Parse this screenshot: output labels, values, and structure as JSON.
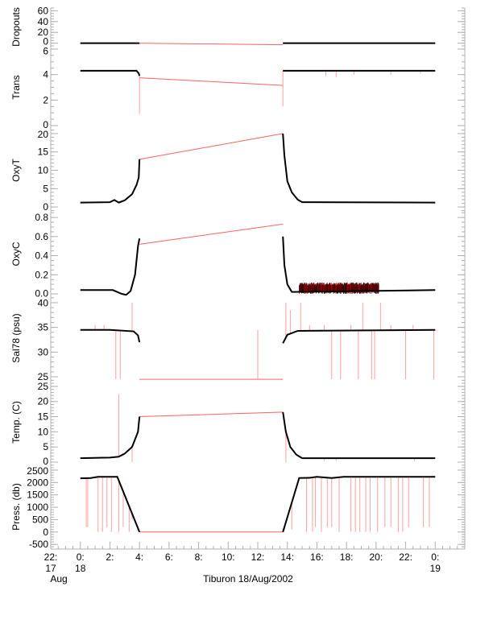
{
  "chart_data": [
    {
      "type": "line",
      "ylabel": "Dropouts",
      "ylim": [
        -5,
        65
      ],
      "ticks": [
        0,
        20,
        40,
        60
      ],
      "minor": 5,
      "good": [
        [
          [
            0,
            0
          ],
          [
            4.0,
            0
          ]
        ],
        [
          [
            13.7,
            0
          ],
          [
            24,
            0
          ]
        ]
      ],
      "interp": [
        [
          4.0,
          0
        ],
        [
          13.7,
          -3
        ]
      ],
      "spikes": []
    },
    {
      "type": "line",
      "ylabel": "Trans",
      "ylim": [
        -0.25,
        6.25
      ],
      "ticks": [
        0,
        2,
        4,
        6
      ],
      "minor": 0.5,
      "good": [
        [
          [
            0,
            4.3
          ],
          [
            3.8,
            4.3
          ],
          [
            3.95,
            4.1
          ],
          [
            4.0,
            3.9
          ]
        ],
        [
          [
            13.7,
            4.3
          ],
          [
            24,
            4.3
          ]
        ]
      ],
      "interp": [
        [
          4.0,
          3.75
        ],
        [
          13.7,
          3.15
        ]
      ],
      "spikes": [
        [
          4.0,
          0.9
        ],
        [
          13.7,
          1.5
        ],
        [
          16.6,
          3.9
        ],
        [
          17.3,
          3.8
        ],
        [
          18.5,
          4.0
        ],
        [
          21.0,
          4.0
        ],
        [
          23.0,
          4.1
        ]
      ]
    },
    {
      "type": "line",
      "ylabel": "OxyT",
      "ylim": [
        -1.3,
        21.3
      ],
      "ticks": [
        0,
        5,
        10,
        15,
        20
      ],
      "minor": 1,
      "good": [
        [
          [
            0,
            1.2
          ],
          [
            2.0,
            1.3
          ],
          [
            2.3,
            1.9
          ],
          [
            2.6,
            1.2
          ],
          [
            3.0,
            1.8
          ],
          [
            3.5,
            3.5
          ],
          [
            3.8,
            6
          ],
          [
            3.95,
            8
          ],
          [
            4.0,
            13
          ]
        ],
        [
          [
            13.7,
            20
          ],
          [
            13.8,
            14
          ],
          [
            14.0,
            7
          ],
          [
            14.3,
            4
          ],
          [
            14.7,
            2
          ],
          [
            15.0,
            1.3
          ],
          [
            24,
            1.2
          ]
        ]
      ],
      "interp": [
        [
          4.0,
          13
        ],
        [
          13.7,
          20
        ]
      ],
      "spikes": []
    },
    {
      "type": "line",
      "ylabel": "OxyC",
      "ylim": [
        -0.025,
        0.86
      ],
      "ticks": [
        0.0,
        0.2,
        0.4,
        0.6,
        0.8
      ],
      "tick_labels": [
        "0.0",
        "0.2",
        "0.4",
        "0.6",
        "0.8"
      ],
      "minor": 0.05,
      "good": [
        [
          [
            0,
            0.04
          ],
          [
            2.2,
            0.04
          ],
          [
            2.8,
            0.0
          ],
          [
            3.1,
            -0.01
          ],
          [
            3.4,
            0.03
          ],
          [
            3.7,
            0.2
          ],
          [
            3.9,
            0.5
          ],
          [
            4.0,
            0.58
          ]
        ],
        [
          [
            13.7,
            0.6
          ],
          [
            13.8,
            0.3
          ],
          [
            14.0,
            0.1
          ],
          [
            14.3,
            0.02
          ],
          [
            24,
            0.04
          ]
        ]
      ],
      "interp": [
        [
          4.0,
          0.52
        ],
        [
          13.7,
          0.73
        ]
      ],
      "spikes": [],
      "noise": {
        "from": 14.8,
        "to": 20.2,
        "low": 0.0,
        "high": 0.12
      }
    },
    {
      "type": "line",
      "ylabel": "Sal78 (psu)",
      "ylim": [
        24.35,
        41.3
      ],
      "ticks": [
        25,
        30,
        35,
        40
      ],
      "minor": 1,
      "good": [
        [
          [
            0,
            34.5
          ],
          [
            2.0,
            34.5
          ],
          [
            3.6,
            34.2
          ],
          [
            3.9,
            33.4
          ],
          [
            4.0,
            32
          ]
        ],
        [
          [
            13.7,
            31.8
          ],
          [
            14.0,
            33.5
          ],
          [
            14.7,
            34.3
          ],
          [
            24,
            34.5
          ]
        ]
      ],
      "interp": [
        [
          4.0,
          24.5
        ],
        [
          13.7,
          24.5
        ]
      ],
      "spikes": [
        [
          2.4,
          24.5
        ],
        [
          2.7,
          24.5
        ],
        [
          3.5,
          40
        ],
        [
          13.9,
          40
        ],
        [
          14.2,
          38.5
        ],
        [
          14.9,
          40
        ],
        [
          17.0,
          24.5
        ],
        [
          17.6,
          24.5
        ],
        [
          18.8,
          24.5
        ],
        [
          19.1,
          40
        ],
        [
          19.7,
          24.5
        ],
        [
          19.9,
          24.5
        ],
        [
          20.3,
          40
        ],
        [
          22.0,
          24.5
        ],
        [
          23.9,
          24.5
        ],
        [
          1.0,
          35.5
        ],
        [
          1.6,
          35.5
        ],
        [
          12.0,
          34.5
        ],
        [
          15.5,
          35.5
        ],
        [
          16.5,
          35.5
        ],
        [
          18.3,
          35.5
        ],
        [
          21.0,
          35.5
        ],
        [
          22.5,
          35.5
        ]
      ]
    },
    {
      "type": "line",
      "ylabel": "Temp. (C)",
      "ylim": [
        -0.8,
        27.1
      ],
      "ticks": [
        0,
        5,
        10,
        15,
        20,
        25
      ],
      "minor": 1,
      "good": [
        [
          [
            0,
            1.3
          ],
          [
            2.0,
            1.5
          ],
          [
            2.6,
            1.8
          ],
          [
            3.0,
            2.8
          ],
          [
            3.5,
            5
          ],
          [
            3.9,
            10
          ],
          [
            4.0,
            15
          ]
        ],
        [
          [
            13.7,
            16.5
          ],
          [
            13.9,
            10
          ],
          [
            14.2,
            5
          ],
          [
            14.6,
            2.5
          ],
          [
            15.0,
            1.3
          ],
          [
            24,
            1.3
          ]
        ]
      ],
      "interp": [
        [
          4.0,
          15
        ],
        [
          13.7,
          16.5
        ]
      ],
      "spikes": [
        [
          2.6,
          22.5
        ],
        [
          3.5,
          0
        ],
        [
          13.9,
          0
        ],
        [
          16.5,
          0.5
        ],
        [
          17.3,
          0.5
        ],
        [
          22.6,
          0.5
        ]
      ]
    },
    {
      "type": "line",
      "ylabel": "Press. (db)",
      "ylim": [
        -690,
        2725
      ],
      "ticks": [
        -500,
        0,
        500,
        1000,
        1500,
        2000,
        2500
      ],
      "minor": 100,
      "good": [
        [
          [
            0,
            2170
          ],
          [
            0.7,
            2180
          ],
          [
            1.2,
            2230
          ],
          [
            2.5,
            2230
          ],
          [
            4.0,
            0
          ]
        ],
        [
          [
            13.7,
            0
          ],
          [
            14.8,
            2180
          ],
          [
            15.5,
            2190
          ],
          [
            16.0,
            2230
          ],
          [
            17.0,
            2180
          ],
          [
            17.8,
            2230
          ],
          [
            24,
            2230
          ]
        ]
      ],
      "interp": [
        [
          4.0,
          0
        ],
        [
          13.7,
          0
        ]
      ],
      "spikes": [
        [
          0.4,
          200
        ],
        [
          0.5,
          200
        ],
        [
          1.2,
          0
        ],
        [
          1.5,
          0
        ],
        [
          1.8,
          200
        ],
        [
          2.1,
          0
        ],
        [
          2.6,
          0
        ],
        [
          2.9,
          200
        ],
        [
          3.3,
          0
        ],
        [
          3.5,
          500
        ],
        [
          14.3,
          100
        ],
        [
          15.3,
          0
        ],
        [
          15.7,
          0
        ],
        [
          15.9,
          200
        ],
        [
          16.3,
          0
        ],
        [
          16.7,
          200
        ],
        [
          17.0,
          200
        ],
        [
          17.5,
          0
        ],
        [
          18.3,
          0
        ],
        [
          18.6,
          0
        ],
        [
          18.9,
          0
        ],
        [
          19.3,
          0
        ],
        [
          19.6,
          0
        ],
        [
          20.1,
          0
        ],
        [
          20.6,
          200
        ],
        [
          21.0,
          200
        ],
        [
          21.5,
          0
        ],
        [
          21.8,
          0
        ],
        [
          22.2,
          200
        ],
        [
          23.2,
          200
        ],
        [
          23.6,
          200
        ]
      ]
    }
  ],
  "xaxis": {
    "ticks": [
      {
        "h": -2,
        "l1": "22:",
        "l2": "17",
        "l3": "Aug"
      },
      {
        "h": 0,
        "l1": "0:",
        "l2": "18"
      },
      {
        "h": 2,
        "l1": "2:"
      },
      {
        "h": 4,
        "l1": "4:"
      },
      {
        "h": 6,
        "l1": "6:"
      },
      {
        "h": 8,
        "l1": "8:"
      },
      {
        "h": 10,
        "l1": "10:"
      },
      {
        "h": 12,
        "l1": "12:"
      },
      {
        "h": 14,
        "l1": "14:"
      },
      {
        "h": 16,
        "l1": "16:"
      },
      {
        "h": 18,
        "l1": "18:"
      },
      {
        "h": 20,
        "l1": "20:"
      },
      {
        "h": 22,
        "l1": "22:"
      },
      {
        "h": 24,
        "l1": "0:",
        "l2": "19"
      }
    ],
    "range": [
      -2,
      26
    ],
    "title": "Tiburon 18/Aug/2002"
  },
  "colors": {
    "good": "#000000",
    "interp": "#ff6060",
    "axis": "#b0b0b0"
  }
}
